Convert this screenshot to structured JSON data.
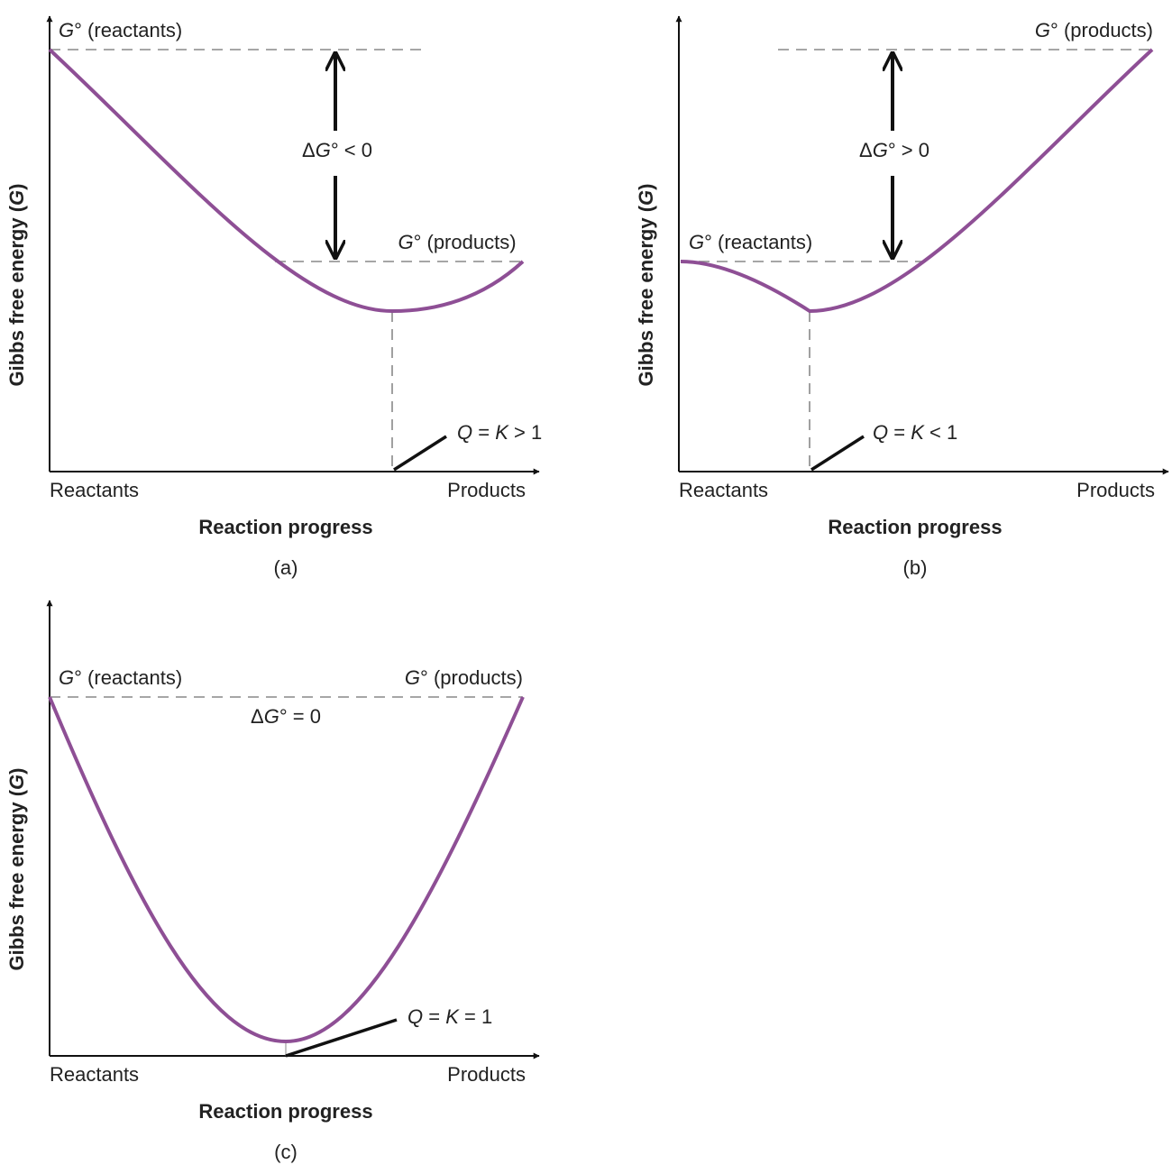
{
  "panels": [
    {
      "label": "(a)",
      "y_axis": "Gibbs free energy (G)",
      "x_axis": "Reaction progress",
      "x_start": "Reactants",
      "x_end": "Products",
      "g_reactants": "G° (reactants)",
      "g_products": "G° (products)",
      "delta": "ΔG° < 0",
      "equilibrium": "Q = K > 1"
    },
    {
      "label": "(b)",
      "y_axis": "Gibbs free energy (G)",
      "x_axis": "Reaction progress",
      "x_start": "Reactants",
      "x_end": "Products",
      "g_reactants": "G° (reactants)",
      "g_products": "G° (products)",
      "delta": "ΔG° > 0",
      "equilibrium": "Q = K < 1"
    },
    {
      "label": "(c)",
      "y_axis": "Gibbs free energy (G)",
      "x_axis": "Reaction progress",
      "x_start": "Reactants",
      "x_end": "Products",
      "g_reactants": "G° (reactants)",
      "g_products": "G° (products)",
      "delta": "ΔG° = 0",
      "equilibrium": "Q = K = 1"
    }
  ]
}
